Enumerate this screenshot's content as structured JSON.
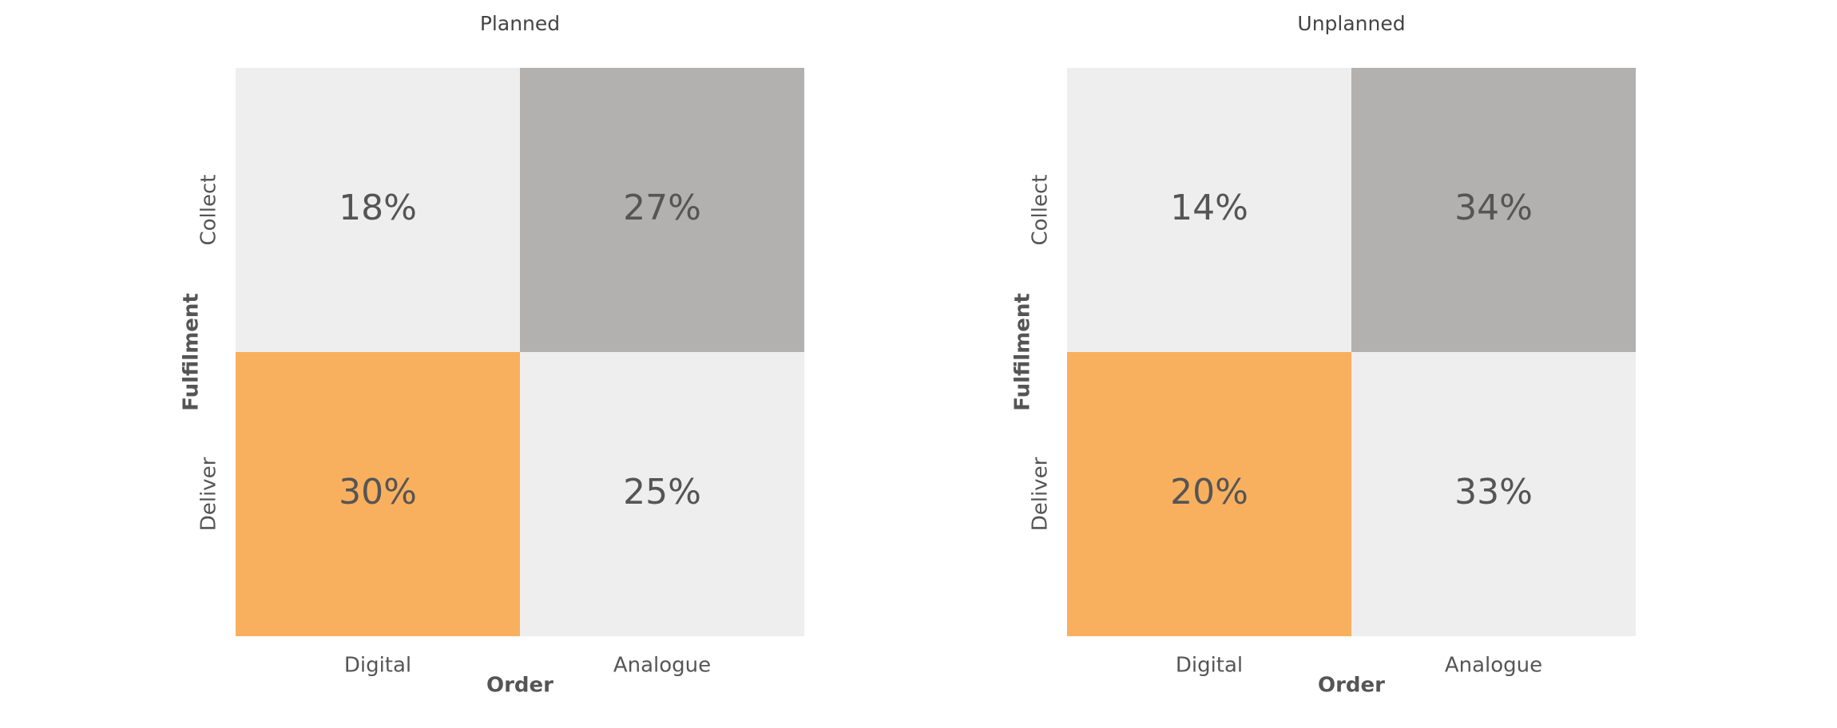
{
  "chart_data": [
    {
      "type": "heatmap",
      "title": "Planned",
      "x_label": "Order",
      "y_label": "Fulfilment",
      "x_categories": [
        "Digital",
        "Analogue"
      ],
      "y_categories": [
        "Collect",
        "Deliver"
      ],
      "values": [
        [
          18,
          27
        ],
        [
          30,
          25
        ]
      ],
      "value_labels": [
        [
          "18%",
          "27%"
        ],
        [
          "30%",
          "25%"
        ]
      ],
      "colors": [
        [
          "#eeeeee",
          "#b3b0b0"
        ],
        [
          "#f9b05e",
          "#eeeeee"
        ]
      ]
    },
    {
      "type": "heatmap",
      "title": "Unplanned",
      "x_label": "Order",
      "y_label": "Fulfilment",
      "x_categories": [
        "Digital",
        "Analogue"
      ],
      "y_categories": [
        "Collect",
        "Deliver"
      ],
      "values": [
        [
          14,
          34
        ],
        [
          20,
          33
        ]
      ],
      "value_labels": [
        [
          "14%",
          "34%"
        ],
        [
          "20%",
          "33%"
        ]
      ],
      "colors": [
        [
          "#eeeeee",
          "#b3b0b0"
        ],
        [
          "#f9b05e",
          "#eeeeee"
        ]
      ]
    }
  ]
}
